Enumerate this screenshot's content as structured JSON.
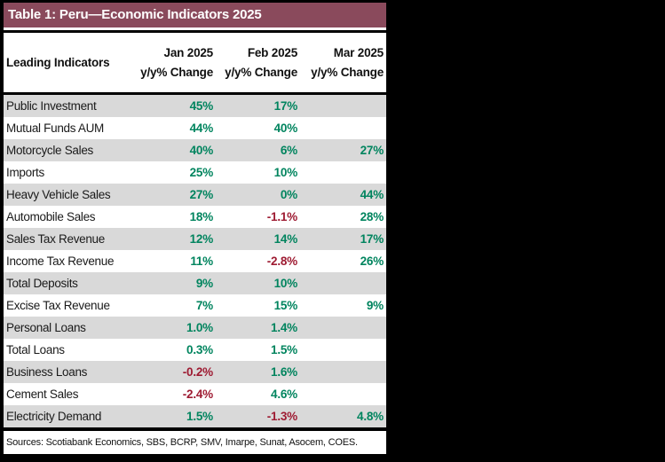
{
  "title": "Table 1: Peru—Economic Indicators 2025",
  "header": {
    "label_col": "Leading Indicators",
    "columns": [
      {
        "month": "Jan 2025",
        "sub": "y/y% Change"
      },
      {
        "month": "Feb 2025",
        "sub": "y/y% Change"
      },
      {
        "month": "Mar 2025",
        "sub": "y/y% Change"
      }
    ]
  },
  "rows": [
    {
      "label": "Public Investment",
      "jan": "45%",
      "feb": "17%",
      "mar": ""
    },
    {
      "label": "Mutual Funds AUM",
      "jan": "44%",
      "feb": "40%",
      "mar": ""
    },
    {
      "label": "Motorcycle Sales",
      "jan": "40%",
      "feb": "6%",
      "mar": "27%"
    },
    {
      "label": "Imports",
      "jan": "25%",
      "feb": "10%",
      "mar": ""
    },
    {
      "label": "Heavy Vehicle Sales",
      "jan": "27%",
      "feb": "0%",
      "mar": "44%"
    },
    {
      "label": "Automobile Sales",
      "jan": "18%",
      "feb": "-1.1%",
      "mar": "28%"
    },
    {
      "label": "Sales Tax Revenue",
      "jan": "12%",
      "feb": "14%",
      "mar": "17%"
    },
    {
      "label": "Income Tax Revenue",
      "jan": "11%",
      "feb": "-2.8%",
      "mar": "26%"
    },
    {
      "label": "Total Deposits",
      "jan": "9%",
      "feb": "10%",
      "mar": ""
    },
    {
      "label": "Excise Tax Revenue",
      "jan": "7%",
      "feb": "15%",
      "mar": "9%"
    },
    {
      "label": "Personal Loans",
      "jan": "1.0%",
      "feb": "1.4%",
      "mar": ""
    },
    {
      "label": "Total Loans",
      "jan": "0.3%",
      "feb": "1.5%",
      "mar": ""
    },
    {
      "label": "Business Loans",
      "jan": "-0.2%",
      "feb": "1.6%",
      "mar": ""
    },
    {
      "label": "Cement Sales",
      "jan": "-2.4%",
      "feb": "4.6%",
      "mar": ""
    },
    {
      "label": "Electricity Demand",
      "jan": "1.5%",
      "feb": "-1.3%",
      "mar": "4.8%"
    }
  ],
  "footer": "Sources: Scotiabank Economics, SBS, BCRP, SMV, Imarpe, Sunat, Asocem, COES.",
  "colors": {
    "header_bg": "#8A4A5C",
    "row_alt": "#D9D9D9",
    "positive": "#00845E",
    "negative": "#9E1B32"
  },
  "chart_data": {
    "type": "table",
    "title": "Table 1: Peru—Economic Indicators 2025",
    "columns": [
      "Leading Indicators",
      "Jan 2025 y/y% Change",
      "Feb 2025 y/y% Change",
      "Mar 2025 y/y% Change"
    ],
    "rows": [
      [
        "Public Investment",
        45,
        17,
        null
      ],
      [
        "Mutual Funds AUM",
        44,
        40,
        null
      ],
      [
        "Motorcycle Sales",
        40,
        6,
        27
      ],
      [
        "Imports",
        25,
        10,
        null
      ],
      [
        "Heavy Vehicle Sales",
        27,
        0,
        44
      ],
      [
        "Automobile Sales",
        18,
        -1.1,
        28
      ],
      [
        "Sales Tax Revenue",
        12,
        14,
        17
      ],
      [
        "Income Tax Revenue",
        11,
        -2.8,
        26
      ],
      [
        "Total Deposits",
        9,
        10,
        null
      ],
      [
        "Excise Tax Revenue",
        7,
        15,
        9
      ],
      [
        "Personal Loans",
        1.0,
        1.4,
        null
      ],
      [
        "Total Loans",
        0.3,
        1.5,
        null
      ],
      [
        "Business Loans",
        -0.2,
        1.6,
        null
      ],
      [
        "Cement Sales",
        -2.4,
        4.6,
        null
      ],
      [
        "Electricity Demand",
        1.5,
        -1.3,
        4.8
      ]
    ],
    "units": "percent y/y change",
    "notes": "Negative values shown in red, non-negative in green; blank cells indicate no data shown"
  }
}
